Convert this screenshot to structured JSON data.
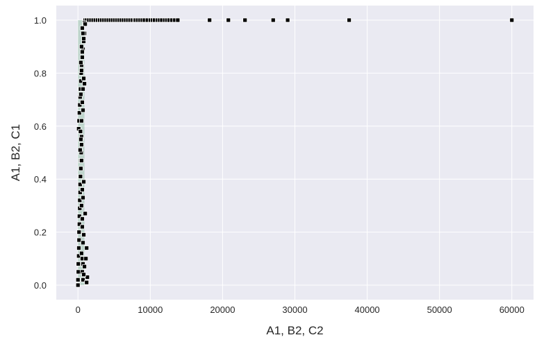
{
  "chart_data": {
    "type": "scatter",
    "xlabel": "A1, B2, C2",
    "ylabel": "A1, B2, C1",
    "xlim": [
      -3000,
      63000
    ],
    "ylim": [
      -0.055,
      1.055
    ],
    "xticks": [
      0,
      10000,
      20000,
      30000,
      40000,
      50000,
      60000
    ],
    "yticks": [
      0.0,
      0.2,
      0.4,
      0.6,
      0.8,
      1.0
    ],
    "xtick_labels": [
      "0",
      "10000",
      "20000",
      "30000",
      "40000",
      "50000",
      "60000"
    ],
    "ytick_labels": [
      "0.0",
      "0.2",
      "0.4",
      "0.6",
      "0.8",
      "1.0"
    ],
    "grid": true,
    "legend": null,
    "colors": {
      "background": "#eaeaf2",
      "grid": "#ffffff",
      "marker": "#000000",
      "marker_edge": "#ffffff",
      "dense_band": "#4c9a6a",
      "text": "#262626"
    },
    "series": [
      {
        "x": [
          0,
          0,
          50,
          50,
          100,
          120,
          150,
          150,
          200,
          200,
          250,
          250,
          300,
          300,
          350,
          400,
          400,
          450,
          500,
          500,
          100,
          150,
          200,
          250,
          300,
          350,
          400,
          450,
          500,
          600,
          700,
          800,
          900,
          1000,
          1200,
          1500,
          1800,
          2100,
          2400,
          2700,
          3000,
          3300,
          3600,
          3900,
          4200,
          4500,
          4800,
          5100,
          5400,
          5700,
          6000,
          6300,
          6600,
          6900,
          7200,
          7500,
          7800,
          8000,
          8300,
          8600,
          8900,
          9200,
          9600,
          10000,
          10300,
          10600,
          11000,
          11300,
          11600,
          12000,
          12300,
          12600,
          13000,
          13400,
          13800,
          18200,
          20800,
          23100,
          27000,
          29000,
          37500,
          60000,
          800,
          900,
          700,
          900,
          1000,
          600,
          700,
          800,
          500,
          600,
          400,
          500,
          400,
          600,
          700,
          500,
          350,
          400,
          300,
          500,
          800,
          600,
          700,
          1000,
          500,
          600,
          600,
          800,
          700,
          1200,
          500,
          600,
          700,
          1100,
          900,
          600,
          1300,
          800,
          700,
          1200
        ],
        "y": [
          0.0,
          0.02,
          0.05,
          0.08,
          0.11,
          0.14,
          0.17,
          0.2,
          0.23,
          0.26,
          0.29,
          0.32,
          0.35,
          0.38,
          0.41,
          0.44,
          0.47,
          0.5,
          0.53,
          0.56,
          0.59,
          0.62,
          0.65,
          0.68,
          0.71,
          0.74,
          0.77,
          0.8,
          0.83,
          0.86,
          0.89,
          0.92,
          0.95,
          1.0,
          1.0,
          1.0,
          1.0,
          1.0,
          1.0,
          1.0,
          1.0,
          1.0,
          1.0,
          1.0,
          1.0,
          1.0,
          1.0,
          1.0,
          1.0,
          1.0,
          1.0,
          1.0,
          1.0,
          1.0,
          1.0,
          1.0,
          1.0,
          1.0,
          1.0,
          1.0,
          1.0,
          1.0,
          1.0,
          1.0,
          1.0,
          1.0,
          1.0,
          1.0,
          1.0,
          1.0,
          1.0,
          1.0,
          1.0,
          1.0,
          1.0,
          1.0,
          1.0,
          1.0,
          1.0,
          1.0,
          1.0,
          1.0,
          0.78,
          0.76,
          0.74,
          0.99,
          0.985,
          0.97,
          0.95,
          0.93,
          0.9,
          0.88,
          0.84,
          0.81,
          0.72,
          0.69,
          0.66,
          0.62,
          0.58,
          0.55,
          0.51,
          0.47,
          0.39,
          0.36,
          0.33,
          0.27,
          0.3,
          0.25,
          0.22,
          0.19,
          0.16,
          0.14,
          0.12,
          0.1,
          0.08,
          0.1,
          0.07,
          0.05,
          0.03,
          0.04,
          0.02,
          0.01
        ]
      }
    ]
  }
}
